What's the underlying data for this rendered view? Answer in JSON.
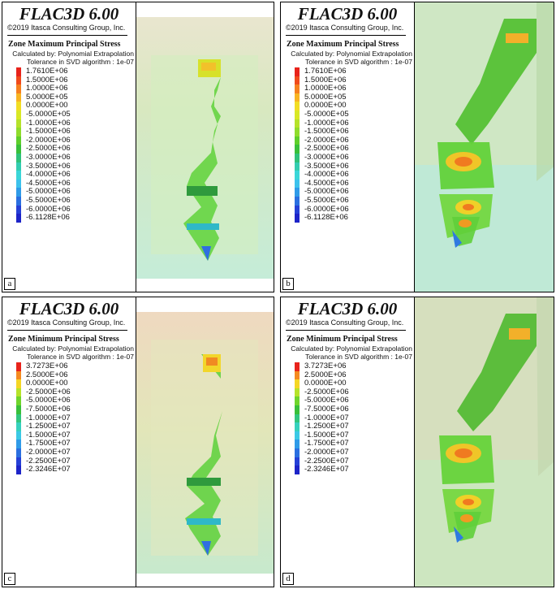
{
  "title": "FLAC3D 6.00",
  "copyright": "©2019 Itasca Consulting Group, Inc.",
  "subtitle1": "Calculated by: Polynomial Extrapolation",
  "subtitle2": "Tolerance in SVD algorithm : 1e-07",
  "max_legend": {
    "label": "Zone Maximum Principal Stress",
    "values": [
      "1.7610E+06",
      "1.5000E+06",
      "1.0000E+06",
      "5.0000E+05",
      "0.0000E+00",
      "-5.0000E+05",
      "-1.0000E+06",
      "-1.5000E+06",
      "-2.0000E+06",
      "-2.5000E+06",
      "-3.0000E+06",
      "-3.5000E+06",
      "-4.0000E+06",
      "-4.5000E+06",
      "-5.0000E+06",
      "-5.5000E+06",
      "-6.0000E+06",
      "-6.1128E+06"
    ],
    "colors": [
      "#e8231b",
      "#f04a1c",
      "#f6801f",
      "#f8b422",
      "#f2dd24",
      "#d8e826",
      "#b5e22a",
      "#8fdc2c",
      "#5ecf2b",
      "#38c03a",
      "#2fc27a",
      "#33cdb0",
      "#3ad6d8",
      "#3cc2ec",
      "#2f9be8",
      "#2a6fe0",
      "#2540d6",
      "#1d24c8"
    ]
  },
  "min_legend": {
    "label": "Zone Minimum Principal Stress",
    "values": [
      "3.7273E+06",
      "2.5000E+06",
      "0.0000E+00",
      "-2.5000E+06",
      "-5.0000E+06",
      "-7.5000E+06",
      "-1.0000E+07",
      "-1.2500E+07",
      "-1.5000E+07",
      "-1.7500E+07",
      "-2.0000E+07",
      "-2.2500E+07",
      "-2.3246E+07"
    ],
    "colors": [
      "#e8231b",
      "#f58a20",
      "#f5d624",
      "#b6e329",
      "#6fd52c",
      "#38c03a",
      "#31c67e",
      "#36d1bd",
      "#3bc9e5",
      "#2f9be8",
      "#2a6fe0",
      "#2540d6",
      "#1d24c8"
    ]
  },
  "panels": [
    {
      "letter": "a"
    },
    {
      "letter": "b"
    },
    {
      "letter": "c"
    },
    {
      "letter": "d"
    }
  ]
}
